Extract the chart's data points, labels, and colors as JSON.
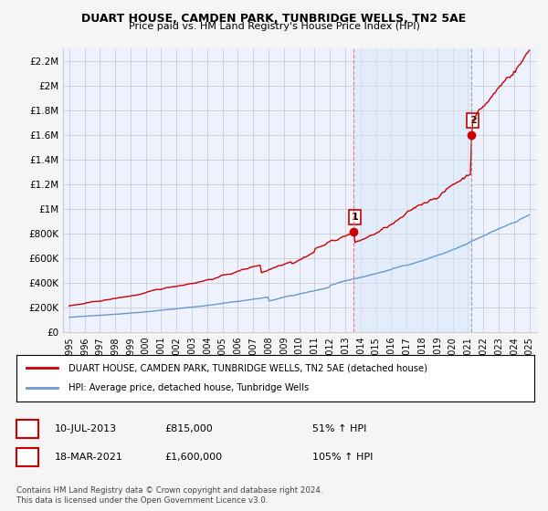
{
  "title": "DUART HOUSE, CAMDEN PARK, TUNBRIDGE WELLS, TN2 5AE",
  "subtitle": "Price paid vs. HM Land Registry's House Price Index (HPI)",
  "legend_line1": "DUART HOUSE, CAMDEN PARK, TUNBRIDGE WELLS, TN2 5AE (detached house)",
  "legend_line2": "HPI: Average price, detached house, Tunbridge Wells",
  "annotation1_label": "1",
  "annotation1_date": "10-JUL-2013",
  "annotation1_price": "£815,000",
  "annotation1_hpi": "51% ↑ HPI",
  "annotation1_year": 2013.53,
  "annotation1_value": 815000,
  "annotation2_label": "2",
  "annotation2_date": "18-MAR-2021",
  "annotation2_price": "£1,600,000",
  "annotation2_hpi": "105% ↑ HPI",
  "annotation2_year": 2021.21,
  "annotation2_value": 1600000,
  "footnote": "Contains HM Land Registry data © Crown copyright and database right 2024.\nThis data is licensed under the Open Government Licence v3.0.",
  "ylim": [
    0,
    2300000
  ],
  "yticks": [
    0,
    200000,
    400000,
    600000,
    800000,
    1000000,
    1200000,
    1400000,
    1600000,
    1800000,
    2000000,
    2200000
  ],
  "ytick_labels": [
    "£0",
    "£200K",
    "£400K",
    "£600K",
    "£800K",
    "£1M",
    "£1.2M",
    "£1.4M",
    "£1.6M",
    "£1.8M",
    "£2M",
    "£2.2M"
  ],
  "hpi_color": "#6699cc",
  "price_color": "#cc0000",
  "background_color": "#f0f4ff",
  "plot_bg_color": "#eef2ff",
  "grid_color": "#cccccc",
  "shade_color": "#dde8f8",
  "xtick_years": [
    1995,
    1996,
    1997,
    1998,
    1999,
    2000,
    2001,
    2002,
    2003,
    2004,
    2005,
    2006,
    2007,
    2008,
    2009,
    2010,
    2011,
    2012,
    2013,
    2014,
    2015,
    2016,
    2017,
    2018,
    2019,
    2020,
    2021,
    2022,
    2023,
    2024,
    2025
  ]
}
